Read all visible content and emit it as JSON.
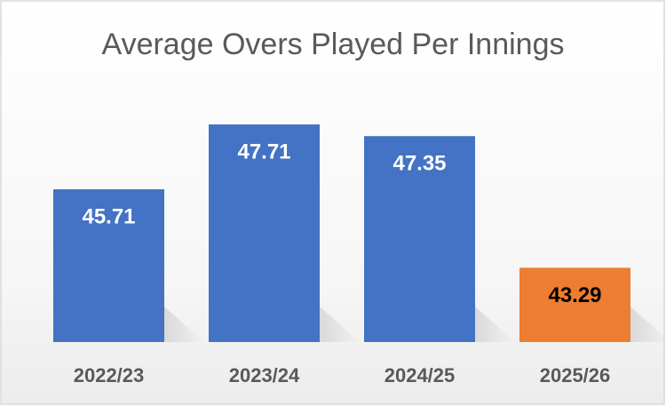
{
  "chart_data": {
    "type": "bar",
    "title": "Average Overs Played Per Innings",
    "categories": [
      "2022/23",
      "2023/24",
      "2024/25",
      "2025/26"
    ],
    "values": [
      45.71,
      47.71,
      47.35,
      43.29
    ],
    "colors": [
      "#4472c4",
      "#4472c4",
      "#4472c4",
      "#ed7d31"
    ],
    "label_colors": [
      "#ffffff",
      "#ffffff",
      "#ffffff",
      "#000000"
    ],
    "ylim": [
      41,
      49
    ]
  }
}
